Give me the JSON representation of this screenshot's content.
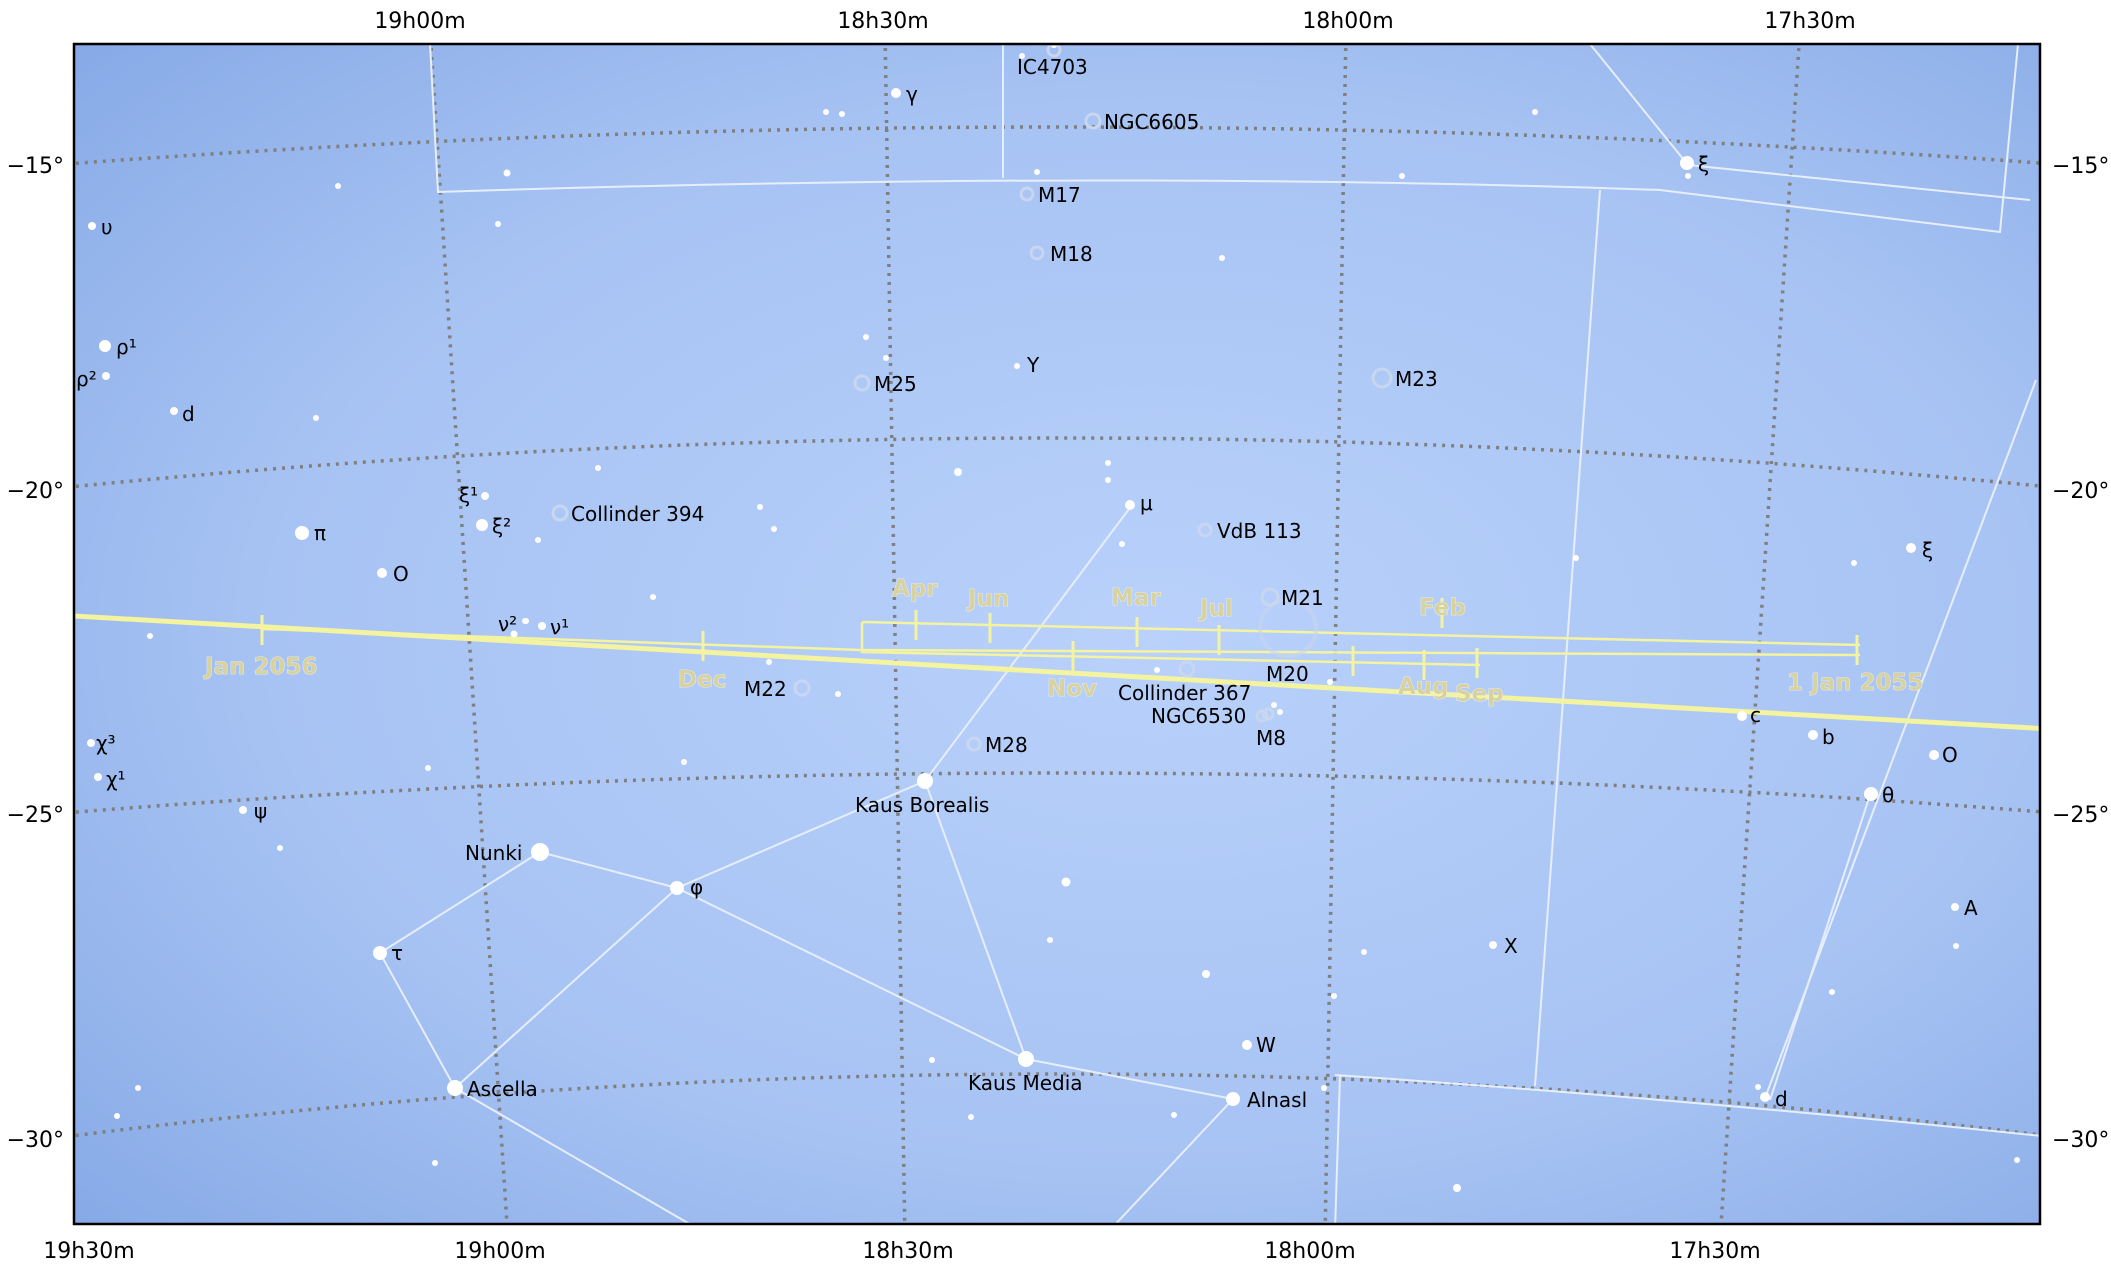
{
  "chart_data": {
    "type": "star-chart",
    "colors": {
      "sky": "#a9c4f3",
      "path": "#f3f3a0",
      "grid": "#7f7f7f",
      "lines": "#e6eefc"
    },
    "ra_labels_top": [
      "19h00m",
      "18h30m",
      "18h00m",
      "17h30m"
    ],
    "ra_labels_bottom": [
      "19h30m",
      "19h00m",
      "18h30m",
      "18h00m",
      "17h30m"
    ],
    "dec_labels": [
      "−15°",
      "−20°",
      "−25°",
      "−30°"
    ],
    "path_labels": [
      {
        "text": "Jan 2056"
      },
      {
        "text": "Dec"
      },
      {
        "text": "Nov"
      },
      {
        "text": "Apr"
      },
      {
        "text": "Jun"
      },
      {
        "text": "Mar"
      },
      {
        "text": "Jul"
      },
      {
        "text": "Feb"
      },
      {
        "text": "Aug"
      },
      {
        "text": "Sep"
      },
      {
        "text": "1 Jan 2055"
      }
    ],
    "objects": [
      {
        "label": "IC4703"
      },
      {
        "label": "NGC6605"
      },
      {
        "label": "M17"
      },
      {
        "label": "M18"
      },
      {
        "label": "M25"
      },
      {
        "label": "M23"
      },
      {
        "label": "Collinder 394"
      },
      {
        "label": "VdB 113"
      },
      {
        "label": "M21"
      },
      {
        "label": "M20"
      },
      {
        "label": "Collinder 367"
      },
      {
        "label": "NGC6530"
      },
      {
        "label": "M8"
      },
      {
        "label": "M22"
      },
      {
        "label": "M28"
      }
    ],
    "stars": [
      {
        "label": "γ"
      },
      {
        "label": "ξ"
      },
      {
        "label": "υ"
      },
      {
        "label": "ρ¹"
      },
      {
        "label": "ρ²"
      },
      {
        "label": "d"
      },
      {
        "label": "Y"
      },
      {
        "label": "μ"
      },
      {
        "label": "ξ¹"
      },
      {
        "label": "ξ²"
      },
      {
        "label": "π"
      },
      {
        "label": "O"
      },
      {
        "label": "ν²"
      },
      {
        "label": "ν¹"
      },
      {
        "label": "ξ"
      },
      {
        "label": "c"
      },
      {
        "label": "b"
      },
      {
        "label": "O"
      },
      {
        "label": "θ"
      },
      {
        "label": "χ³"
      },
      {
        "label": "χ¹"
      },
      {
        "label": "ψ"
      },
      {
        "label": "Kaus Borealis"
      },
      {
        "label": "Nunki"
      },
      {
        "label": "φ"
      },
      {
        "label": "A"
      },
      {
        "label": "τ"
      },
      {
        "label": "X"
      },
      {
        "label": "W"
      },
      {
        "label": "Kaus Media"
      },
      {
        "label": "Ascella"
      },
      {
        "label": "Alnasl"
      },
      {
        "label": "d"
      }
    ]
  }
}
